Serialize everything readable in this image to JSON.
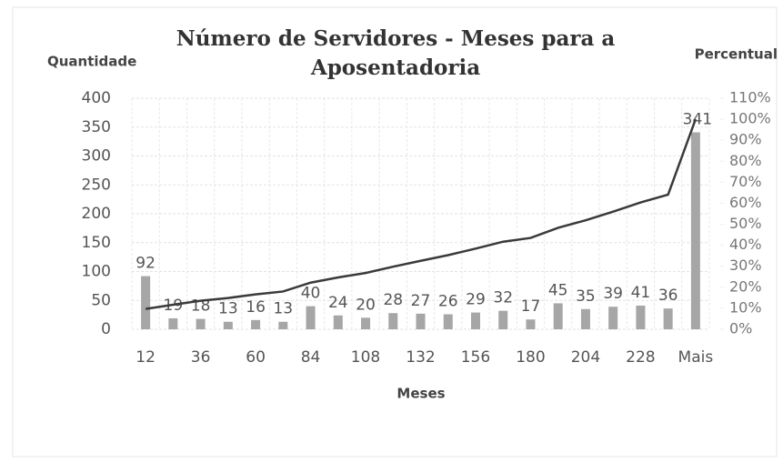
{
  "chart_data": {
    "type": "bar",
    "title": [
      "Número de Servidores - Meses para a",
      "Aposentadoria"
    ],
    "y_label": "Quantidade",
    "y2_label": "Percentual",
    "x_label": "Meses",
    "categories": [
      "12",
      null,
      "36",
      null,
      "60",
      null,
      "84",
      null,
      "108",
      null,
      "132",
      null,
      "156",
      null,
      "180",
      null,
      "204",
      null,
      "228",
      null,
      "Mais"
    ],
    "series": [
      {
        "type": "bar",
        "color": "#a6a6a6",
        "values": [
          92,
          19,
          18,
          13,
          16,
          13,
          40,
          24,
          20,
          28,
          27,
          26,
          29,
          32,
          17,
          45,
          35,
          39,
          41,
          36,
          341
        ]
      },
      {
        "type": "line",
        "axis": "y2",
        "color": "#3a3a3a",
        "values": [
          9.7,
          11.7,
          13.6,
          14.9,
          16.6,
          18.0,
          22.2,
          24.7,
          26.8,
          29.8,
          32.6,
          35.3,
          38.4,
          41.7,
          43.5,
          48.3,
          51.9,
          56.0,
          60.4,
          64.1,
          100
        ]
      }
    ],
    "ylim": [
      0,
      400
    ],
    "yticks": [
      0,
      50,
      100,
      150,
      200,
      250,
      300,
      350,
      400
    ],
    "y2lim": [
      0,
      110
    ],
    "y2ticks": [
      {
        "value": 0,
        "label": "0%"
      },
      {
        "value": 10,
        "label": "10%"
      },
      {
        "value": 20,
        "label": "20%"
      },
      {
        "value": 30,
        "label": "30%"
      },
      {
        "value": 40,
        "label": "40%"
      },
      {
        "value": 50,
        "label": "50%"
      },
      {
        "value": 60,
        "label": "60%"
      },
      {
        "value": 70,
        "label": "70%"
      },
      {
        "value": 80,
        "label": "80%"
      },
      {
        "value": 90,
        "label": "90%"
      },
      {
        "value": 100,
        "label": "100%"
      },
      {
        "value": 110,
        "label": "110%"
      }
    ],
    "grid": true
  }
}
